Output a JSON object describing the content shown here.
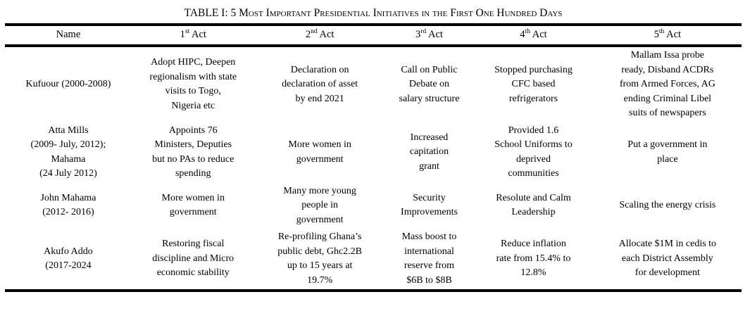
{
  "title": "TABLE I: 5 Most Important Presidential Initiatives in the First One Hundred Days",
  "table": {
    "columns": [
      {
        "label": "Name"
      },
      {
        "num": "1",
        "sup": "st",
        "word": "Act"
      },
      {
        "num": "2",
        "sup": "nd",
        "word": "Act"
      },
      {
        "num": "3",
        "sup": "rd",
        "word": "Act"
      },
      {
        "num": "4",
        "sup": "th",
        "word": "Act"
      },
      {
        "num": "5",
        "sup": "th",
        "word": "Act"
      }
    ],
    "rows": [
      {
        "cells": [
          "Kufuour (2000-2008)",
          "Adopt HIPC, Deepen\nregionalism with state\nvisits to Togo,\nNigeria etc",
          "Declaration on\ndeclaration of asset\nby end 2021",
          "Call on Public\nDebate on\nsalary structure",
          "Stopped purchasing\nCFC based\nrefrigerators",
          "Mallam Issa probe\nready, Disband ACDRs\nfrom Armed Forces, AG\nending Criminal Libel\nsuits of newspapers"
        ]
      },
      {
        "cells": [
          "Atta Mills\n(2009- July, 2012);\nMahama\n(24 July 2012)",
          "Appoints 76\nMinisters, Deputies\nbut no PAs to reduce\nspending",
          "More women in\ngovernment",
          "Increased\ncapitation\ngrant",
          "Provided 1.6\nSchool Uniforms to\ndeprived\ncommunities",
          "Put a government in\nplace"
        ]
      },
      {
        "cells": [
          "John Mahama\n(2012- 2016)",
          "More women in\ngovernment",
          "Many more young\npeople in\ngovernment",
          "Security\nImprovements",
          "Resolute and Calm\nLeadership",
          "Scaling the energy crisis"
        ]
      },
      {
        "cells": [
          "Akufo Addo\n(2017-2024",
          "Restoring fiscal\ndiscipline and Micro\neconomic stability",
          "Re-profiling Ghana’s\npublic debt, Ghc2.2B\nup to 15 years at\n19.7%",
          "Mass boost to\ninternational\nreserve from\n$6B to $8B",
          "Reduce inflation\nrate from 15.4% to\n12.8%",
          "Allocate $1M in cedis to\neach District Assembly\nfor development"
        ]
      }
    ]
  }
}
